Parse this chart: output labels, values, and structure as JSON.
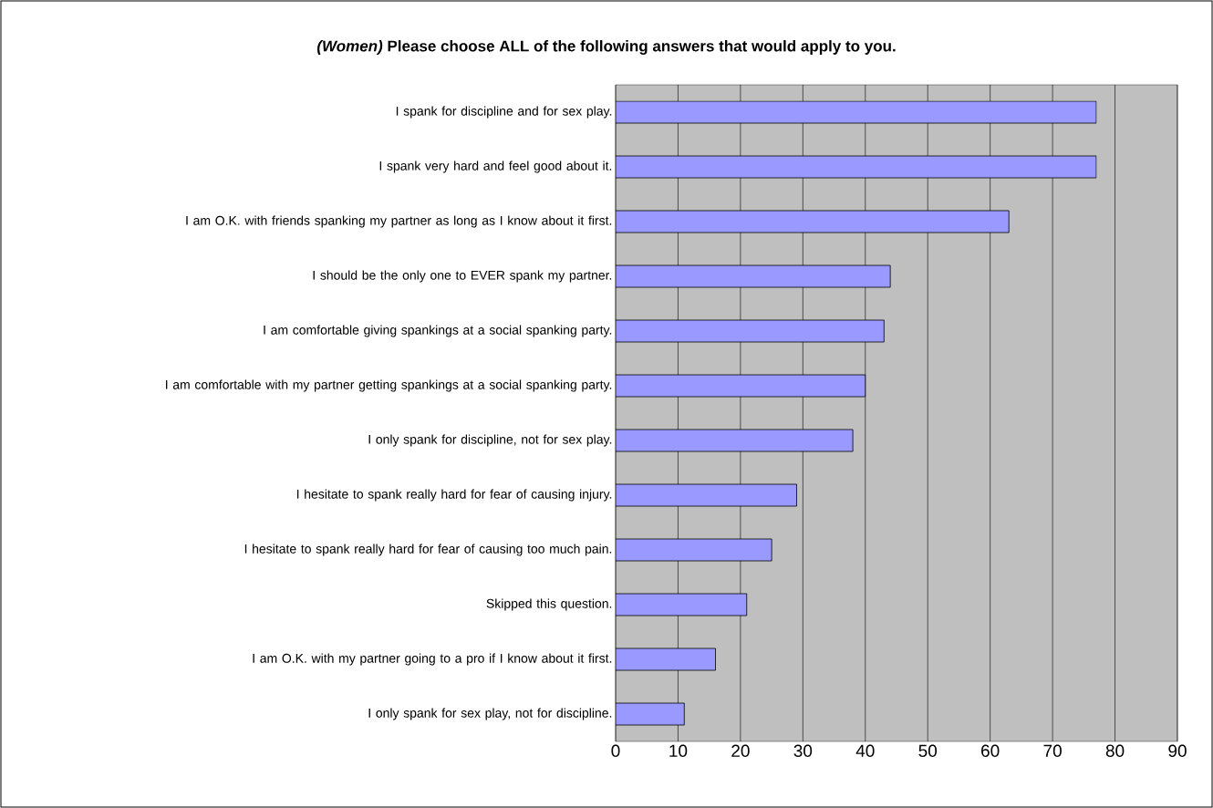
{
  "chart_data": {
    "type": "bar",
    "orientation": "horizontal",
    "title": "*(Women)* Please choose ALL of the following answers that would apply to you.",
    "categories": [
      "I spank for discipline and for sex play.",
      "I spank very hard and feel good about it.",
      "I am O.K. with friends spanking my partner as long as I know about it first.",
      "I should be the only one to EVER spank my partner.",
      "I am comfortable giving spankings at a social spanking party.",
      "I am comfortable with my partner getting spankings at a social spanking party.",
      "I only spank for discipline, not for sex play.",
      "I hesitate to spank really hard for fear of causing injury.",
      "I hesitate to spank really hard for fear of causing too much pain.",
      "Skipped this question.",
      "I am O.K. with my partner going to a pro if I know about it first.",
      "I only spank for sex play, not for discipline."
    ],
    "values": [
      77,
      77,
      63,
      44,
      43,
      40,
      38,
      29,
      25,
      21,
      16,
      11
    ],
    "color": "#9999ff",
    "xlim": [
      0,
      90
    ],
    "xticks": [
      0,
      10,
      20,
      30,
      40,
      50,
      60,
      70,
      80,
      90
    ],
    "grid": "x"
  }
}
